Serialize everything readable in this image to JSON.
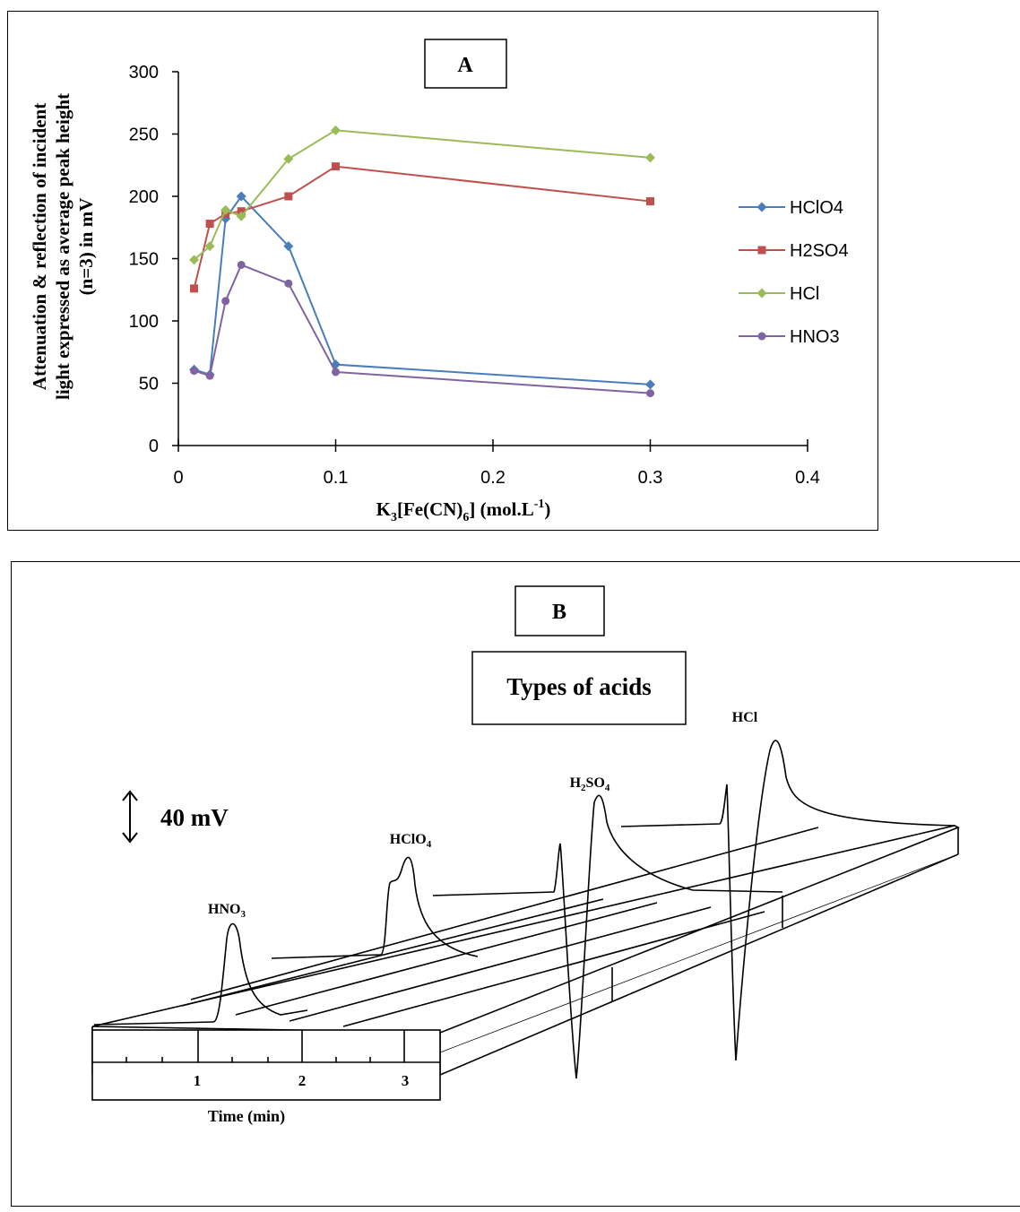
{
  "panel_a": {
    "label": "A",
    "chart_data": {
      "type": "line",
      "xlabel": "K3[Fe(CN)6] (mol.L-1)",
      "xlabel_parts": {
        "base": "K",
        "s1": "3",
        "mid": "[Fe(CN)",
        "s2": "6",
        "end": "] (mol.L",
        "sup": "-1",
        "close": ")"
      },
      "ylabel_lines": [
        "Attenuation & reflection of incident",
        "light expressed as average peak height",
        "(n=3) in mV"
      ],
      "xlim": [
        0,
        0.4
      ],
      "ylim": [
        0,
        300
      ],
      "x_ticks": [
        "0",
        "0.1",
        "0.2",
        "0.3",
        "0.4"
      ],
      "y_ticks": [
        "0",
        "50",
        "100",
        "150",
        "200",
        "250",
        "300"
      ],
      "grid": false,
      "legend_position": "right",
      "series": [
        {
          "name": "HClO4",
          "color": "#4a7ebb",
          "marker": "diamond",
          "x": [
            0.01,
            0.02,
            0.03,
            0.04,
            0.07,
            0.1,
            0.3
          ],
          "y": [
            61,
            57,
            182,
            200,
            160,
            65,
            49
          ]
        },
        {
          "name": "H2SO4",
          "color": "#c0504d",
          "marker": "square",
          "x": [
            0.01,
            0.02,
            0.03,
            0.04,
            0.07,
            0.1,
            0.3
          ],
          "y": [
            126,
            178,
            186,
            188,
            200,
            224,
            196
          ]
        },
        {
          "name": "HCl",
          "color": "#9bbb59",
          "marker": "diamond",
          "x": [
            0.01,
            0.02,
            0.03,
            0.04,
            0.07,
            0.1,
            0.3
          ],
          "y": [
            149,
            160,
            189,
            184,
            230,
            253,
            231
          ]
        },
        {
          "name": "HNO3",
          "color": "#8064a2",
          "marker": "circle",
          "x": [
            0.01,
            0.02,
            0.03,
            0.04,
            0.07,
            0.1,
            0.3
          ],
          "y": [
            60,
            56,
            116,
            145,
            130,
            59,
            42
          ]
        }
      ]
    }
  },
  "panel_b": {
    "label": "B",
    "title": "Types of acids",
    "scale_label": "40 mV",
    "peak_labels": {
      "hno3": {
        "base": "HNO",
        "sub": "3"
      },
      "hclo4": {
        "base": "HClO",
        "sub": "4"
      },
      "h2so4": {
        "h": "H",
        "s1": "2",
        "so": "SO",
        "s2": "4"
      },
      "hcl": "HCl"
    },
    "time_ticks": [
      "1",
      "2",
      "3"
    ],
    "time_label": "Time (min)"
  }
}
